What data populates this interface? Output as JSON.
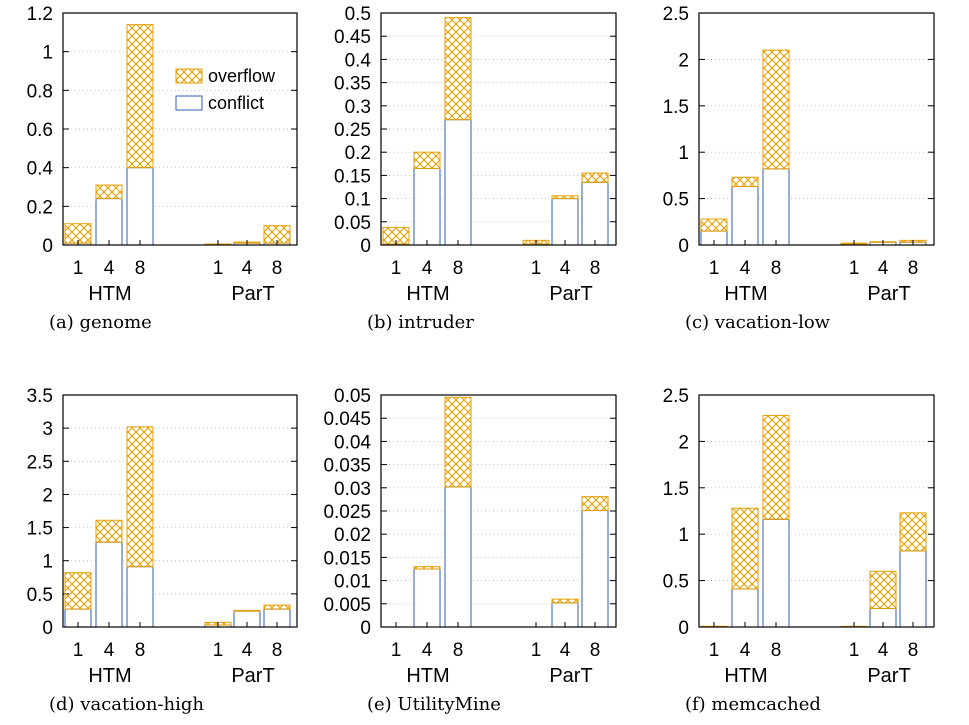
{
  "colors": {
    "overflow": "#e69f00",
    "conflict": "#2e5db0",
    "axis": "#000000",
    "grid": "#b0b0b0"
  },
  "legend": {
    "overflow": "overflow",
    "conflict": "conflict"
  },
  "chart_data": [
    {
      "type": "bar",
      "stacked": true,
      "caption": "(a) genome",
      "groups": [
        "HTM",
        "ParT"
      ],
      "categories": [
        "1",
        "4",
        "8",
        "1",
        "4",
        "8"
      ],
      "series": [
        {
          "name": "conflict",
          "values": [
            0.01,
            0.24,
            0.4,
            0.003,
            0.01,
            0.01
          ]
        },
        {
          "name": "overflow",
          "values": [
            0.1,
            0.07,
            0.74,
            0.002,
            0.005,
            0.09
          ]
        }
      ],
      "ylim": [
        0,
        1.2
      ],
      "yticks": [
        "0",
        "0.2",
        "0.4",
        "0.6",
        "0.8",
        "1",
        "1.2"
      ],
      "grid": true,
      "legend_position": "top-right"
    },
    {
      "type": "bar",
      "stacked": true,
      "caption": "(b) intruder",
      "groups": [
        "HTM",
        "ParT"
      ],
      "categories": [
        "1",
        "4",
        "8",
        "1",
        "4",
        "8"
      ],
      "series": [
        {
          "name": "conflict",
          "values": [
            0.002,
            0.165,
            0.27,
            0.002,
            0.1,
            0.135
          ]
        },
        {
          "name": "overflow",
          "values": [
            0.036,
            0.035,
            0.22,
            0.008,
            0.006,
            0.02
          ]
        }
      ],
      "ylim": [
        0,
        0.5
      ],
      "yticks": [
        "0",
        "0.05",
        "0.1",
        "0.15",
        "0.2",
        "0.25",
        "0.3",
        "0.35",
        "0.4",
        "0.45",
        "0.5"
      ],
      "grid": true
    },
    {
      "type": "bar",
      "stacked": true,
      "caption": "(c) vacation-low",
      "groups": [
        "HTM",
        "ParT"
      ],
      "categories": [
        "1",
        "4",
        "8",
        "1",
        "4",
        "8"
      ],
      "series": [
        {
          "name": "conflict",
          "values": [
            0.15,
            0.63,
            0.82,
            0.01,
            0.03,
            0.03
          ]
        },
        {
          "name": "overflow",
          "values": [
            0.13,
            0.1,
            1.28,
            0.01,
            0.005,
            0.02
          ]
        }
      ],
      "ylim": [
        0,
        2.5
      ],
      "yticks": [
        "0",
        "0.5",
        "1",
        "1.5",
        "2",
        "2.5"
      ],
      "grid": true
    },
    {
      "type": "bar",
      "stacked": true,
      "caption": "(d) vacation-high",
      "groups": [
        "HTM",
        "ParT"
      ],
      "categories": [
        "1",
        "4",
        "8",
        "1",
        "4",
        "8"
      ],
      "series": [
        {
          "name": "conflict",
          "values": [
            0.27,
            1.28,
            0.91,
            0.03,
            0.24,
            0.27
          ]
        },
        {
          "name": "overflow",
          "values": [
            0.55,
            0.33,
            2.11,
            0.04,
            0.01,
            0.06
          ]
        }
      ],
      "ylim": [
        0,
        3.5
      ],
      "yticks": [
        "0",
        "0.5",
        "1",
        "1.5",
        "2",
        "2.5",
        "3",
        "3.5"
      ],
      "grid": true
    },
    {
      "type": "bar",
      "stacked": true,
      "caption": "(e) UtilityMine",
      "groups": [
        "HTM",
        "ParT"
      ],
      "categories": [
        "1",
        "4",
        "8",
        "1",
        "4",
        "8"
      ],
      "series": [
        {
          "name": "conflict",
          "values": [
            0,
            0.0125,
            0.0302,
            0,
            0.0052,
            0.0251
          ]
        },
        {
          "name": "overflow",
          "values": [
            0,
            0.0005,
            0.0193,
            0,
            0.0008,
            0.003
          ]
        }
      ],
      "ylim": [
        0,
        0.05
      ],
      "yticks": [
        "0",
        "0.005",
        "0.01",
        "0.015",
        "0.02",
        "0.025",
        "0.03",
        "0.035",
        "0.04",
        "0.045",
        "0.05"
      ],
      "grid": true
    },
    {
      "type": "bar",
      "stacked": true,
      "caption": "(f) memcached",
      "groups": [
        "HTM",
        "ParT"
      ],
      "categories": [
        "1",
        "4",
        "8",
        "1",
        "4",
        "8"
      ],
      "series": [
        {
          "name": "conflict",
          "values": [
            0.005,
            0.41,
            1.16,
            0.005,
            0.2,
            0.82
          ]
        },
        {
          "name": "overflow",
          "values": [
            0.003,
            0.87,
            1.12,
            0.002,
            0.4,
            0.41
          ]
        }
      ],
      "ylim": [
        0,
        2.5
      ],
      "yticks": [
        "0",
        "0.5",
        "1",
        "1.5",
        "2",
        "2.5"
      ],
      "grid": true
    }
  ]
}
